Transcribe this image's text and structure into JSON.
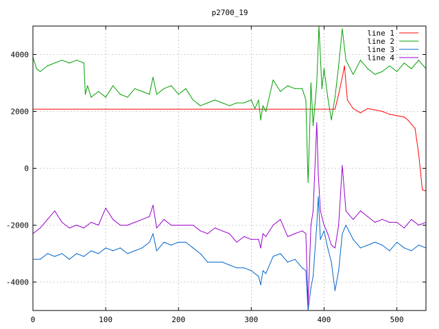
{
  "chart_data": {
    "type": "line",
    "title": "p2700_19",
    "xlabel": "",
    "ylabel": "",
    "xlim": [
      0,
      540
    ],
    "ylim": [
      -5000,
      5000
    ],
    "xticks": [
      0,
      100,
      200,
      300,
      400,
      500
    ],
    "yticks": [
      -4000,
      -2000,
      0,
      2000,
      4000
    ],
    "grid": true,
    "legend_position": "top-right",
    "series": [
      {
        "name": "line 1",
        "color": "#ff0000",
        "x": [
          0,
          100,
          200,
          300,
          400,
          415,
          420,
          425,
          428,
          432,
          440,
          450,
          460,
          470,
          480,
          490,
          500,
          510,
          515,
          520,
          525,
          530,
          535,
          540
        ],
        "y": [
          2080,
          2080,
          2080,
          2080,
          2080,
          2080,
          2600,
          3200,
          3600,
          2400,
          2100,
          1950,
          2100,
          2050,
          2000,
          1900,
          1850,
          1800,
          1700,
          1550,
          1400,
          500,
          -750,
          -800
        ]
      },
      {
        "name": "line 2",
        "color": "#00a000",
        "x": [
          0,
          5,
          10,
          20,
          30,
          40,
          50,
          60,
          70,
          72,
          75,
          80,
          90,
          100,
          110,
          120,
          130,
          140,
          150,
          160,
          165,
          170,
          180,
          190,
          200,
          210,
          220,
          230,
          240,
          250,
          260,
          270,
          280,
          290,
          300,
          305,
          310,
          313,
          316,
          320,
          330,
          340,
          350,
          360,
          370,
          375,
          378,
          380,
          382,
          385,
          390,
          393,
          397,
          400,
          405,
          410,
          415,
          420,
          425,
          430,
          440,
          450,
          460,
          470,
          480,
          490,
          500,
          510,
          520,
          530,
          540
        ],
        "y": [
          3900,
          3500,
          3400,
          3600,
          3700,
          3800,
          3700,
          3800,
          3700,
          2600,
          2900,
          2500,
          2700,
          2500,
          2900,
          2600,
          2500,
          2800,
          2700,
          2600,
          3200,
          2600,
          2800,
          2900,
          2600,
          2800,
          2400,
          2200,
          2300,
          2400,
          2300,
          2200,
          2300,
          2300,
          2400,
          2100,
          2400,
          1700,
          2200,
          2000,
          3100,
          2700,
          2900,
          2800,
          2800,
          2400,
          -500,
          1100,
          3000,
          1500,
          3000,
          5000,
          2800,
          3500,
          2500,
          1700,
          2500,
          3600,
          4900,
          3800,
          3300,
          3800,
          3500,
          3300,
          3400,
          3600,
          3400,
          3700,
          3500,
          3800,
          3500
        ]
      },
      {
        "name": "line 3",
        "color": "#0066cc",
        "x": [
          0,
          10,
          20,
          30,
          40,
          50,
          60,
          70,
          80,
          90,
          100,
          110,
          120,
          130,
          140,
          150,
          160,
          165,
          170,
          180,
          190,
          200,
          210,
          220,
          230,
          240,
          250,
          260,
          270,
          280,
          290,
          300,
          310,
          313,
          316,
          320,
          330,
          340,
          350,
          360,
          370,
          375,
          378,
          382,
          385,
          390,
          392,
          395,
          400,
          405,
          410,
          415,
          420,
          425,
          430,
          440,
          450,
          460,
          470,
          480,
          490,
          500,
          510,
          520,
          530,
          540
        ],
        "y": [
          -3200,
          -3200,
          -3000,
          -3100,
          -3000,
          -3200,
          -3000,
          -3100,
          -2900,
          -3000,
          -2800,
          -2900,
          -2800,
          -3000,
          -2900,
          -2800,
          -2600,
          -2300,
          -2900,
          -2600,
          -2700,
          -2600,
          -2600,
          -2800,
          -3000,
          -3300,
          -3300,
          -3300,
          -3400,
          -3500,
          -3500,
          -3600,
          -3800,
          -4100,
          -3600,
          -3700,
          -3100,
          -3000,
          -3300,
          -3200,
          -3500,
          -3600,
          -5000,
          -4200,
          -3800,
          -2000,
          -1000,
          -2500,
          -2200,
          -2800,
          -3300,
          -4300,
          -3600,
          -2300,
          -2000,
          -2500,
          -2800,
          -2700,
          -2600,
          -2700,
          -2900,
          -2600,
          -2800,
          -2900,
          -2700,
          -2800
        ]
      },
      {
        "name": "line 4",
        "color": "#9900cc",
        "x": [
          0,
          10,
          20,
          30,
          40,
          50,
          60,
          70,
          80,
          90,
          100,
          110,
          120,
          130,
          140,
          150,
          160,
          165,
          170,
          180,
          190,
          200,
          210,
          220,
          230,
          240,
          250,
          260,
          270,
          280,
          290,
          300,
          310,
          313,
          316,
          320,
          330,
          340,
          350,
          360,
          370,
          375,
          378,
          382,
          385,
          390,
          392,
          395,
          400,
          405,
          410,
          415,
          420,
          425,
          430,
          440,
          450,
          460,
          470,
          480,
          490,
          500,
          510,
          520,
          530,
          540
        ],
        "y": [
          -2300,
          -2100,
          -1800,
          -1500,
          -1900,
          -2100,
          -2000,
          -2100,
          -1900,
          -2000,
          -1400,
          -1800,
          -2000,
          -2000,
          -1900,
          -1800,
          -1700,
          -1300,
          -2100,
          -1800,
          -2000,
          -2000,
          -2000,
          -2000,
          -2200,
          -2300,
          -2100,
          -2200,
          -2300,
          -2600,
          -2400,
          -2500,
          -2500,
          -2800,
          -2300,
          -2400,
          -2000,
          -1800,
          -2400,
          -2300,
          -2200,
          -2300,
          -4800,
          -2000,
          -1500,
          1600,
          -200,
          -1500,
          -2000,
          -2300,
          -2700,
          -2800,
          -2000,
          100,
          -1500,
          -1800,
          -1500,
          -1700,
          -1900,
          -1800,
          -1900,
          -1900,
          -2100,
          -1800,
          -2000,
          -1900
        ]
      }
    ]
  }
}
